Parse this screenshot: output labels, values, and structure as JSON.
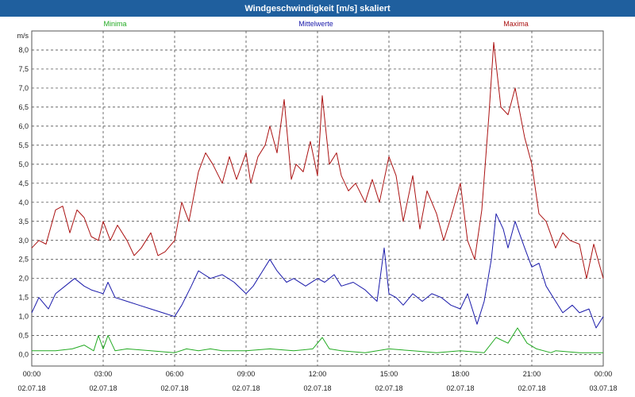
{
  "window": {
    "title": "Windgeschwindigkeit [m/s] skaliert"
  },
  "chart_data": {
    "type": "line",
    "title": "Windgeschwindigkeit [m/s] skaliert",
    "ylabel": "m/s",
    "xlabel": "",
    "ylim": [
      -0.3,
      8.5
    ],
    "xlim": [
      0,
      24
    ],
    "grid": true,
    "yticks": [
      0.0,
      0.5,
      1.0,
      1.5,
      2.0,
      2.5,
      3.0,
      3.5,
      4.0,
      4.5,
      5.0,
      5.5,
      6.0,
      6.5,
      7.0,
      7.5,
      8.0
    ],
    "ytick_labels": [
      "0,0",
      "0,5",
      "1,0",
      "1,5",
      "2,0",
      "2,5",
      "3,0",
      "3,5",
      "4,0",
      "4,5",
      "5,0",
      "5,5",
      "6,0",
      "6,5",
      "7,0",
      "7,5",
      "8,0"
    ],
    "xticks": [
      {
        "x": 0,
        "time": "00:00",
        "date": "02.07.18"
      },
      {
        "x": 3,
        "time": "03:00",
        "date": "02.07.18"
      },
      {
        "x": 6,
        "time": "06:00",
        "date": "02.07.18"
      },
      {
        "x": 9,
        "time": "09:00",
        "date": "02.07.18"
      },
      {
        "x": 12,
        "time": "12:00",
        "date": "02.07.18"
      },
      {
        "x": 15,
        "time": "15:00",
        "date": "02.07.18"
      },
      {
        "x": 18,
        "time": "18:00",
        "date": "02.07.18"
      },
      {
        "x": 21,
        "time": "21:00",
        "date": "02.07.18"
      },
      {
        "x": 24,
        "time": "00:00",
        "date": "03.07.18"
      }
    ],
    "series": [
      {
        "name": "Minima",
        "color": "#22aa22",
        "legend_pos": "top-left",
        "x": [
          0,
          1,
          1.7,
          2.2,
          2.6,
          2.8,
          3,
          3.2,
          3.5,
          4,
          5,
          6,
          6.5,
          7,
          7.5,
          8,
          9,
          10,
          11,
          11.8,
          12.2,
          12.5,
          13,
          14,
          15,
          16,
          17,
          18,
          19,
          19.5,
          20,
          20.4,
          20.8,
          21.2,
          21.8,
          22,
          23,
          24
        ],
        "values": [
          0.1,
          0.1,
          0.15,
          0.25,
          0.1,
          0.5,
          0.15,
          0.5,
          0.1,
          0.15,
          0.1,
          0.05,
          0.15,
          0.1,
          0.15,
          0.1,
          0.1,
          0.15,
          0.1,
          0.15,
          0.45,
          0.15,
          0.1,
          0.05,
          0.15,
          0.1,
          0.05,
          0.1,
          0.05,
          0.45,
          0.3,
          0.7,
          0.3,
          0.15,
          0.05,
          0.1,
          0.05,
          0.05
        ]
      },
      {
        "name": "Mittelwerte",
        "color": "#1a1aaa",
        "legend_pos": "top-center",
        "x": [
          0,
          0.3,
          0.7,
          1,
          1.4,
          1.8,
          2.2,
          2.5,
          3,
          3.2,
          3.5,
          4,
          4.5,
          5,
          5.5,
          6,
          6.3,
          6.7,
          7,
          7.5,
          8,
          8.5,
          9,
          9.3,
          9.6,
          10,
          10.3,
          10.7,
          11,
          11.5,
          12,
          12.3,
          12.7,
          13,
          13.5,
          14,
          14.5,
          14.8,
          15,
          15.3,
          15.6,
          16,
          16.4,
          16.8,
          17.2,
          17.6,
          18,
          18.3,
          18.7,
          19,
          19.3,
          19.5,
          19.8,
          20,
          20.3,
          20.7,
          21,
          21.3,
          21.6,
          22,
          22.3,
          22.7,
          23,
          23.4,
          23.7,
          24
        ],
        "values": [
          1.1,
          1.5,
          1.2,
          1.6,
          1.8,
          2.0,
          1.8,
          1.7,
          1.6,
          1.9,
          1.5,
          1.4,
          1.3,
          1.2,
          1.1,
          1.0,
          1.3,
          1.8,
          2.2,
          2.0,
          2.1,
          1.9,
          1.6,
          1.8,
          2.1,
          2.5,
          2.2,
          1.9,
          2.0,
          1.8,
          2.0,
          1.9,
          2.1,
          1.8,
          1.9,
          1.7,
          1.4,
          2.8,
          1.6,
          1.5,
          1.3,
          1.6,
          1.4,
          1.6,
          1.5,
          1.3,
          1.2,
          1.6,
          0.8,
          1.4,
          2.5,
          3.7,
          3.3,
          2.8,
          3.5,
          2.8,
          2.3,
          2.4,
          1.8,
          1.4,
          1.1,
          1.3,
          1.1,
          1.2,
          0.7,
          1.0
        ]
      },
      {
        "name": "Maxima",
        "color": "#aa1111",
        "legend_pos": "top-right",
        "x": [
          0,
          0.3,
          0.6,
          1,
          1.3,
          1.6,
          1.9,
          2.2,
          2.5,
          2.8,
          3,
          3.3,
          3.6,
          4,
          4.3,
          4.6,
          5,
          5.3,
          5.6,
          6,
          6.3,
          6.6,
          7,
          7.3,
          7.6,
          8,
          8.3,
          8.6,
          9,
          9.2,
          9.5,
          9.8,
          10,
          10.3,
          10.6,
          10.9,
          11.1,
          11.4,
          11.7,
          12,
          12.2,
          12.5,
          12.8,
          13,
          13.3,
          13.6,
          14,
          14.3,
          14.6,
          15,
          15.3,
          15.6,
          16,
          16.3,
          16.6,
          17,
          17.3,
          17.6,
          18,
          18.3,
          18.6,
          18.9,
          19.2,
          19.4,
          19.7,
          20,
          20.3,
          20.7,
          21,
          21.3,
          21.6,
          22,
          22.3,
          22.6,
          23,
          23.3,
          23.6,
          24
        ],
        "values": [
          2.8,
          3.0,
          2.9,
          3.8,
          3.9,
          3.2,
          3.8,
          3.6,
          3.1,
          3.0,
          3.5,
          3.0,
          3.4,
          3.0,
          2.6,
          2.8,
          3.2,
          2.6,
          2.7,
          3.0,
          4.0,
          3.5,
          4.8,
          5.3,
          5.0,
          4.5,
          5.2,
          4.6,
          5.3,
          4.5,
          5.2,
          5.5,
          6.0,
          5.3,
          6.7,
          4.6,
          5.0,
          4.8,
          5.6,
          4.7,
          6.8,
          5.0,
          5.3,
          4.7,
          4.3,
          4.5,
          4.0,
          4.6,
          4.0,
          5.2,
          4.7,
          3.5,
          4.7,
          3.3,
          4.3,
          3.7,
          3.0,
          3.6,
          4.5,
          3.0,
          2.5,
          3.8,
          6.3,
          8.2,
          6.5,
          6.3,
          7.0,
          5.7,
          5.0,
          3.7,
          3.5,
          2.8,
          3.2,
          3.0,
          2.9,
          2.0,
          2.9,
          2.0
        ]
      }
    ]
  }
}
